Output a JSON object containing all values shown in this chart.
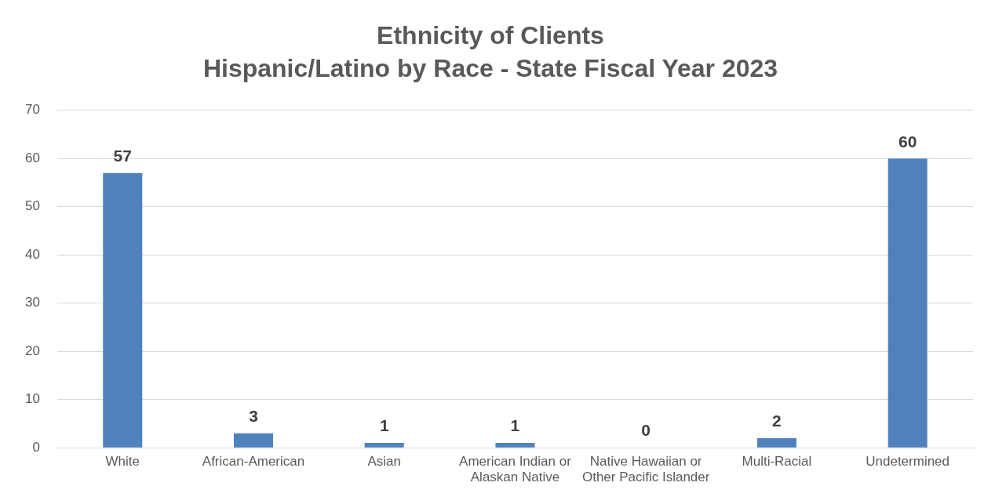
{
  "chart_data": {
    "type": "bar",
    "title": "Ethnicity of Clients",
    "subtitle": "Hispanic/Latino by Race - State Fiscal Year 2023",
    "categories": [
      "White",
      "African-American",
      "Asian",
      "American Indian or Alaskan Native",
      "Native Hawaiian or Other Pacific Islander",
      "Multi-Racial",
      "Undetermined"
    ],
    "values": [
      57,
      3,
      1,
      1,
      0,
      2,
      60
    ],
    "color": "#4f81bd",
    "ylim": [
      0,
      70
    ],
    "yticks": [
      0,
      10,
      20,
      30,
      40,
      50,
      60,
      70
    ],
    "grid": "y",
    "data_labels": true,
    "legend": false
  }
}
